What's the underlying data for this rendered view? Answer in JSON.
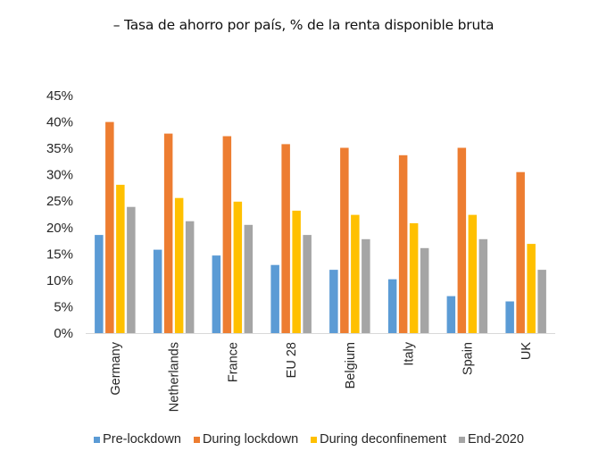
{
  "title": "– Tasa de ahorro por país, % de la renta disponible bruta",
  "chart_data": {
    "type": "bar",
    "title": "– Tasa de ahorro por país, % de la renta disponible bruta",
    "xlabel": "",
    "ylabel": "",
    "ylim": [
      0,
      45
    ],
    "yticks": [
      0,
      5,
      10,
      15,
      20,
      25,
      30,
      35,
      40,
      45
    ],
    "ytick_labels": [
      "0%",
      "5%",
      "10%",
      "15%",
      "20%",
      "25%",
      "30%",
      "35%",
      "40%",
      "45%"
    ],
    "grid": false,
    "legend_position": "bottom",
    "categories": [
      "Germany",
      "Netherlands",
      "France",
      "EU 28",
      "Belgium",
      "Italy",
      "Spain",
      "UK"
    ],
    "series": [
      {
        "name": "Pre-lockdown",
        "color": "#5B9BD5",
        "values": [
          18.6,
          15.8,
          14.7,
          12.9,
          12.0,
          10.2,
          7.0,
          6.0
        ]
      },
      {
        "name": "During lockdown",
        "color": "#ED7D31",
        "values": [
          40.0,
          37.8,
          37.3,
          35.8,
          35.1,
          33.7,
          35.1,
          30.5
        ]
      },
      {
        "name": "During deconfinement",
        "color": "#FFC000",
        "values": [
          28.1,
          25.6,
          24.9,
          23.2,
          22.4,
          20.8,
          22.4,
          16.9
        ]
      },
      {
        "name": "End-2020",
        "color": "#A5A5A5",
        "values": [
          23.9,
          21.2,
          20.5,
          18.6,
          17.8,
          16.1,
          17.8,
          12.0
        ]
      }
    ]
  }
}
